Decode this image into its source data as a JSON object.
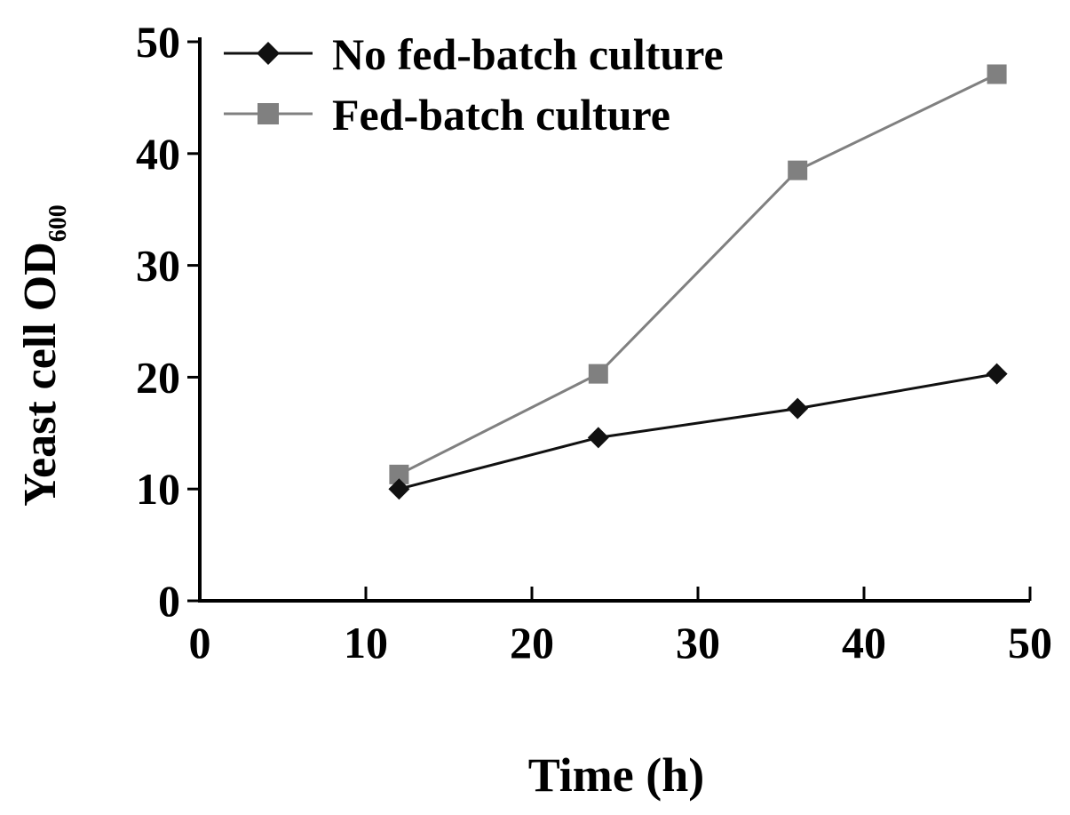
{
  "chart_data": {
    "type": "line",
    "xlabel": "Time (h)",
    "ylabel": "Yeast cell OD",
    "ylabel_subscript": "600",
    "xlim": [
      0,
      50
    ],
    "ylim": [
      0,
      50
    ],
    "x_ticks": [
      "0",
      "10",
      "20",
      "30",
      "40",
      "50"
    ],
    "y_ticks": [
      "0",
      "10",
      "20",
      "30",
      "40",
      "50"
    ],
    "grid": false,
    "legend_position": "top-left",
    "x": [
      12,
      24,
      36,
      48
    ],
    "series": [
      {
        "name": "No fed-batch culture",
        "marker": "diamond",
        "color": "#111111",
        "values": [
          10.0,
          14.6,
          17.2,
          20.3
        ]
      },
      {
        "name": "Fed-batch culture",
        "marker": "square",
        "color": "#808080",
        "values": [
          11.3,
          20.3,
          38.5,
          47.1
        ]
      }
    ]
  }
}
